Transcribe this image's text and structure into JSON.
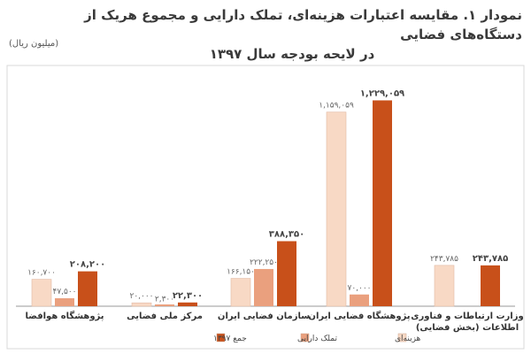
{
  "chart_data": {
    "type": "bar",
    "title_line1": "نمودار ۱. مقایسه اعتبارات هزینه‌ای، تملک دارایی و مجموع هریک از دستگاه‌های فضایی",
    "title_line2": "در لایحه بودجه سال ۱۳۹۷",
    "unit": "(میلیون ریال)",
    "categories": [
      [
        "پژوهشگاه هوافضا"
      ],
      [
        "مرکز ملی فضایی"
      ],
      [
        "سازمان فضایی ایران"
      ],
      [
        "پژوهشگاه فضایی ایران"
      ],
      [
        "وزارت ارتباطات و فناوری",
        "اطلاعات (بخش فضایی)"
      ]
    ],
    "series": [
      {
        "name": "هزینه‌ای",
        "color": "#f8d9c5",
        "values": [
          160700,
          20000,
          166150,
          1159059,
          243785
        ],
        "labels": [
          "۱۶۰,۷۰۰",
          "۲۰,۰۰۰",
          "۱۶۶,۱۵۰",
          "۱,۱۵۹,۰۵۹",
          "۲۴۳,۷۸۵"
        ]
      },
      {
        "name": "تملک دارایی",
        "color": "#eaa07e",
        "values": [
          47500,
          2300,
          222250,
          70000,
          0
        ],
        "labels": [
          "۴۷,۵۰۰",
          "۲,۳۰۰",
          "۲۲۲,۲۵۰",
          "۷۰,۰۰۰",
          ""
        ]
      },
      {
        "name": "جمع ۱۳۹۷",
        "color": "#c8501a",
        "values": [
          208200,
          22300,
          388350,
          1229059,
          243785
        ],
        "labels": [
          "۲۰۸,۲۰۰",
          "۲۲,۳۰۰",
          "۳۸۸,۳۵۰",
          "۱,۲۲۹,۰۵۹",
          "۲۴۳,۷۸۵"
        ]
      }
    ],
    "ylim": [
      0,
      1300000
    ],
    "grid": false,
    "legend_position": "bottom"
  }
}
